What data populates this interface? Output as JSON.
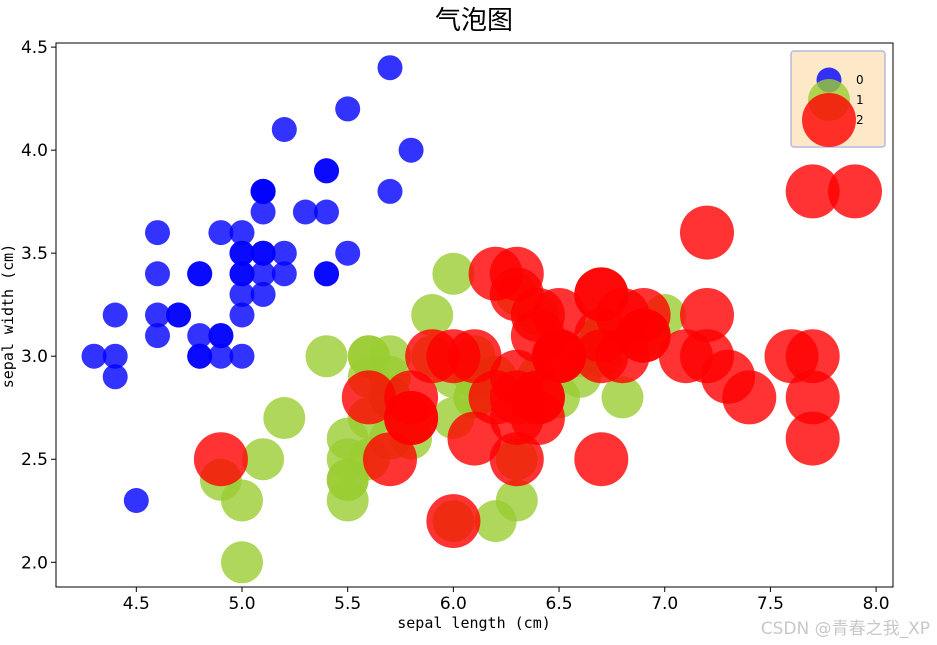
{
  "watermark": "CSDN @青春之我_XP",
  "chart_data": {
    "type": "scatter",
    "subtype": "bubble",
    "title": "气泡图",
    "xlabel": "sepal length (cm)",
    "ylabel": "sepal width (cm)",
    "xlim": [
      4.12,
      8.08
    ],
    "ylim": [
      1.88,
      4.52
    ],
    "xticks": [
      4.5,
      5.0,
      5.5,
      6.0,
      6.5,
      7.0,
      7.5,
      8.0
    ],
    "yticks": [
      2.0,
      2.5,
      3.0,
      3.5,
      4.0,
      4.5
    ],
    "legend_position": "top-right",
    "legend_background": "#fde9c8",
    "grid": false,
    "series": [
      {
        "name": "0",
        "color": "#0000ff",
        "size": 1,
        "points": [
          [
            5.1,
            3.5
          ],
          [
            4.9,
            3.0
          ],
          [
            4.7,
            3.2
          ],
          [
            4.6,
            3.1
          ],
          [
            5.0,
            3.6
          ],
          [
            5.4,
            3.9
          ],
          [
            4.6,
            3.4
          ],
          [
            5.0,
            3.4
          ],
          [
            4.4,
            2.9
          ],
          [
            4.9,
            3.1
          ],
          [
            5.4,
            3.7
          ],
          [
            4.8,
            3.4
          ],
          [
            4.8,
            3.0
          ],
          [
            4.3,
            3.0
          ],
          [
            5.8,
            4.0
          ],
          [
            5.7,
            4.4
          ],
          [
            5.4,
            3.9
          ],
          [
            5.1,
            3.5
          ],
          [
            5.7,
            3.8
          ],
          [
            5.1,
            3.8
          ],
          [
            5.4,
            3.4
          ],
          [
            5.1,
            3.7
          ],
          [
            4.6,
            3.6
          ],
          [
            5.1,
            3.3
          ],
          [
            4.8,
            3.4
          ],
          [
            5.0,
            3.0
          ],
          [
            5.0,
            3.4
          ],
          [
            5.2,
            3.5
          ],
          [
            5.2,
            3.4
          ],
          [
            4.7,
            3.2
          ],
          [
            4.8,
            3.1
          ],
          [
            5.4,
            3.4
          ],
          [
            5.2,
            4.1
          ],
          [
            5.5,
            4.2
          ],
          [
            4.9,
            3.1
          ],
          [
            5.0,
            3.2
          ],
          [
            5.5,
            3.5
          ],
          [
            4.9,
            3.6
          ],
          [
            4.4,
            3.0
          ],
          [
            5.1,
            3.4
          ],
          [
            5.0,
            3.5
          ],
          [
            4.5,
            2.3
          ],
          [
            4.4,
            3.2
          ],
          [
            5.0,
            3.5
          ],
          [
            5.1,
            3.8
          ],
          [
            4.8,
            3.0
          ],
          [
            5.1,
            3.8
          ],
          [
            4.6,
            3.2
          ],
          [
            5.3,
            3.7
          ],
          [
            5.0,
            3.3
          ]
        ]
      },
      {
        "name": "1",
        "color": "#9acd32",
        "size": 2,
        "points": [
          [
            7.0,
            3.2
          ],
          [
            6.4,
            3.2
          ],
          [
            6.9,
            3.1
          ],
          [
            5.5,
            2.3
          ],
          [
            6.5,
            2.8
          ],
          [
            5.7,
            2.8
          ],
          [
            6.3,
            3.3
          ],
          [
            4.9,
            2.4
          ],
          [
            6.6,
            2.9
          ],
          [
            5.2,
            2.7
          ],
          [
            5.0,
            2.0
          ],
          [
            5.9,
            3.0
          ],
          [
            6.0,
            2.2
          ],
          [
            6.1,
            2.9
          ],
          [
            5.6,
            2.9
          ],
          [
            6.7,
            3.1
          ],
          [
            5.6,
            3.0
          ],
          [
            5.8,
            2.7
          ],
          [
            6.2,
            2.2
          ],
          [
            5.6,
            2.5
          ],
          [
            5.9,
            3.2
          ],
          [
            6.1,
            2.8
          ],
          [
            6.3,
            2.5
          ],
          [
            6.1,
            2.8
          ],
          [
            6.4,
            2.9
          ],
          [
            6.6,
            3.0
          ],
          [
            6.8,
            2.8
          ],
          [
            6.7,
            3.0
          ],
          [
            6.0,
            2.9
          ],
          [
            5.7,
            2.6
          ],
          [
            5.5,
            2.4
          ],
          [
            5.5,
            2.4
          ],
          [
            5.8,
            2.7
          ],
          [
            6.0,
            2.7
          ],
          [
            5.4,
            3.0
          ],
          [
            6.0,
            3.4
          ],
          [
            6.7,
            3.1
          ],
          [
            6.3,
            2.3
          ],
          [
            5.6,
            3.0
          ],
          [
            5.5,
            2.5
          ],
          [
            5.5,
            2.6
          ],
          [
            6.1,
            3.0
          ],
          [
            5.8,
            2.6
          ],
          [
            5.0,
            2.3
          ],
          [
            5.6,
            2.7
          ],
          [
            5.7,
            3.0
          ],
          [
            5.7,
            2.9
          ],
          [
            6.2,
            2.9
          ],
          [
            5.1,
            2.5
          ],
          [
            5.7,
            2.8
          ]
        ]
      },
      {
        "name": "2",
        "color": "#ff0000",
        "size": 3,
        "points": [
          [
            6.3,
            3.3
          ],
          [
            5.8,
            2.7
          ],
          [
            7.1,
            3.0
          ],
          [
            6.3,
            2.9
          ],
          [
            6.5,
            3.0
          ],
          [
            7.6,
            3.0
          ],
          [
            4.9,
            2.5
          ],
          [
            7.3,
            2.9
          ],
          [
            6.7,
            2.5
          ],
          [
            7.2,
            3.6
          ],
          [
            6.5,
            3.2
          ],
          [
            6.4,
            2.7
          ],
          [
            6.8,
            3.0
          ],
          [
            5.7,
            2.5
          ],
          [
            5.8,
            2.8
          ],
          [
            6.4,
            3.2
          ],
          [
            6.5,
            3.0
          ],
          [
            7.7,
            3.8
          ],
          [
            7.7,
            2.6
          ],
          [
            6.0,
            2.2
          ],
          [
            6.9,
            3.2
          ],
          [
            5.6,
            2.8
          ],
          [
            7.7,
            2.8
          ],
          [
            6.3,
            2.7
          ],
          [
            6.7,
            3.3
          ],
          [
            7.2,
            3.2
          ],
          [
            6.2,
            2.8
          ],
          [
            6.1,
            3.0
          ],
          [
            6.4,
            2.8
          ],
          [
            7.2,
            3.0
          ],
          [
            7.4,
            2.8
          ],
          [
            7.9,
            3.8
          ],
          [
            6.4,
            2.8
          ],
          [
            6.3,
            2.8
          ],
          [
            6.1,
            2.6
          ],
          [
            7.7,
            3.0
          ],
          [
            6.3,
            3.4
          ],
          [
            6.4,
            3.1
          ],
          [
            6.0,
            3.0
          ],
          [
            6.9,
            3.1
          ],
          [
            6.7,
            3.1
          ],
          [
            6.9,
            3.1
          ],
          [
            5.8,
            2.7
          ],
          [
            6.8,
            3.2
          ],
          [
            6.7,
            3.3
          ],
          [
            6.7,
            3.0
          ],
          [
            6.3,
            2.5
          ],
          [
            6.5,
            3.0
          ],
          [
            6.2,
            3.4
          ],
          [
            5.9,
            3.0
          ]
        ]
      }
    ]
  }
}
